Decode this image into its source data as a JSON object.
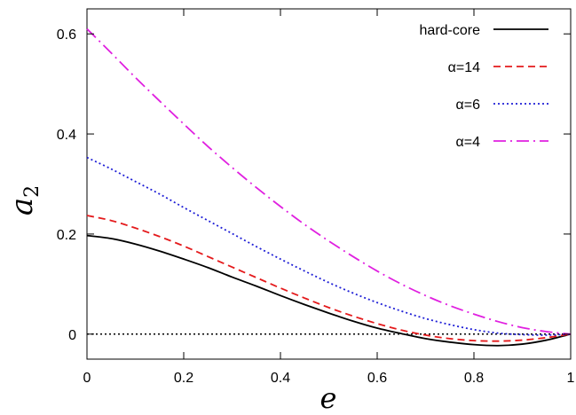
{
  "chart_data": {
    "type": "line",
    "xlabel": "e",
    "ylabel": "a",
    "ylabel_subscript": "2",
    "xlim": [
      0,
      1
    ],
    "ylim": [
      -0.05,
      0.65
    ],
    "x_ticks": [
      0,
      0.2,
      0.4,
      0.6,
      0.8,
      1
    ],
    "x_tick_labels": [
      "0",
      "0.2",
      "0.4",
      "0.6",
      "0.8",
      "1"
    ],
    "y_ticks": [
      0,
      0.2,
      0.4,
      0.6
    ],
    "y_tick_labels": [
      "0",
      "0.2",
      "0.4",
      "0.6"
    ],
    "grid": false,
    "legend_position": "top-right",
    "reference_line": {
      "y": 0,
      "style": "dotted",
      "color": "#000000"
    },
    "x": [
      0,
      0.05,
      0.1,
      0.15,
      0.2,
      0.25,
      0.3,
      0.35,
      0.4,
      0.45,
      0.5,
      0.55,
      0.6,
      0.65,
      0.7,
      0.75,
      0.8,
      0.85,
      0.9,
      0.95,
      1
    ],
    "series": [
      {
        "name": "hard-core",
        "color": "#000000",
        "dash": "solid",
        "values": [
          0.197,
          0.191,
          0.18,
          0.166,
          0.15,
          0.133,
          0.114,
          0.096,
          0.077,
          0.059,
          0.042,
          0.026,
          0.012,
          0.001,
          -0.009,
          -0.016,
          -0.021,
          -0.023,
          -0.02,
          -0.012,
          0.0
        ]
      },
      {
        "name": "α=14",
        "color": "#e41a1c",
        "dash": "dashed",
        "values": [
          0.237,
          0.227,
          0.212,
          0.195,
          0.176,
          0.155,
          0.134,
          0.113,
          0.092,
          0.072,
          0.053,
          0.036,
          0.021,
          0.008,
          -0.002,
          -0.009,
          -0.013,
          -0.014,
          -0.012,
          -0.007,
          0.0
        ]
      },
      {
        "name": "α=6",
        "color": "#1f1fd6",
        "dash": "dotted",
        "values": [
          0.353,
          0.33,
          0.305,
          0.28,
          0.253,
          0.227,
          0.201,
          0.175,
          0.15,
          0.126,
          0.103,
          0.082,
          0.063,
          0.046,
          0.031,
          0.019,
          0.009,
          0.002,
          -0.001,
          -0.002,
          0.0
        ]
      },
      {
        "name": "α=4",
        "color": "#e020e0",
        "dash": "dashdot",
        "values": [
          0.61,
          0.562,
          0.513,
          0.466,
          0.42,
          0.375,
          0.333,
          0.293,
          0.255,
          0.219,
          0.186,
          0.155,
          0.126,
          0.1,
          0.077,
          0.057,
          0.04,
          0.025,
          0.013,
          0.005,
          0.0
        ]
      }
    ]
  }
}
